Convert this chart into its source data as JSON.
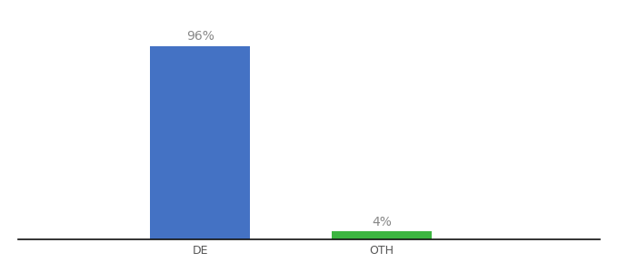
{
  "categories": [
    "DE",
    "OTH"
  ],
  "values": [
    96,
    4
  ],
  "bar_colors": [
    "#4472c4",
    "#3cb540"
  ],
  "label_texts": [
    "96%",
    "4%"
  ],
  "background_color": "#ffffff",
  "xlim": [
    -1.0,
    2.2
  ],
  "ylim": [
    0,
    108
  ],
  "bar_width": 0.55,
  "annotation_fontsize": 10,
  "tick_fontsize": 9,
  "label_color": "#888888"
}
